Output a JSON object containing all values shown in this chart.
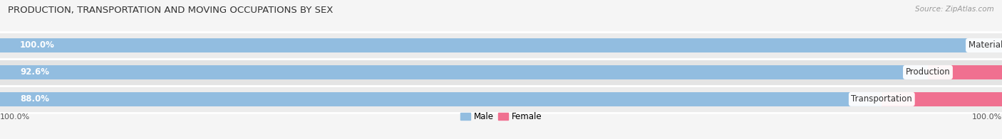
{
  "title": "PRODUCTION, TRANSPORTATION AND MOVING OCCUPATIONS BY SEX",
  "source": "Source: ZipAtlas.com",
  "categories": [
    "Material Moving",
    "Production",
    "Transportation"
  ],
  "male_pct": [
    100.0,
    92.6,
    88.0
  ],
  "female_pct": [
    0.0,
    7.4,
    12.0
  ],
  "male_color": "#92bde0",
  "female_color": "#f07090",
  "bg_colors": [
    "#f0f0f0",
    "#e8e8e8"
  ],
  "row_bg": "#ececec",
  "title_fontsize": 9.5,
  "bar_label_fontsize": 8.5,
  "tick_fontsize": 8,
  "legend_fontsize": 8.5,
  "source_fontsize": 7.5,
  "cat_label_fontsize": 8.5
}
